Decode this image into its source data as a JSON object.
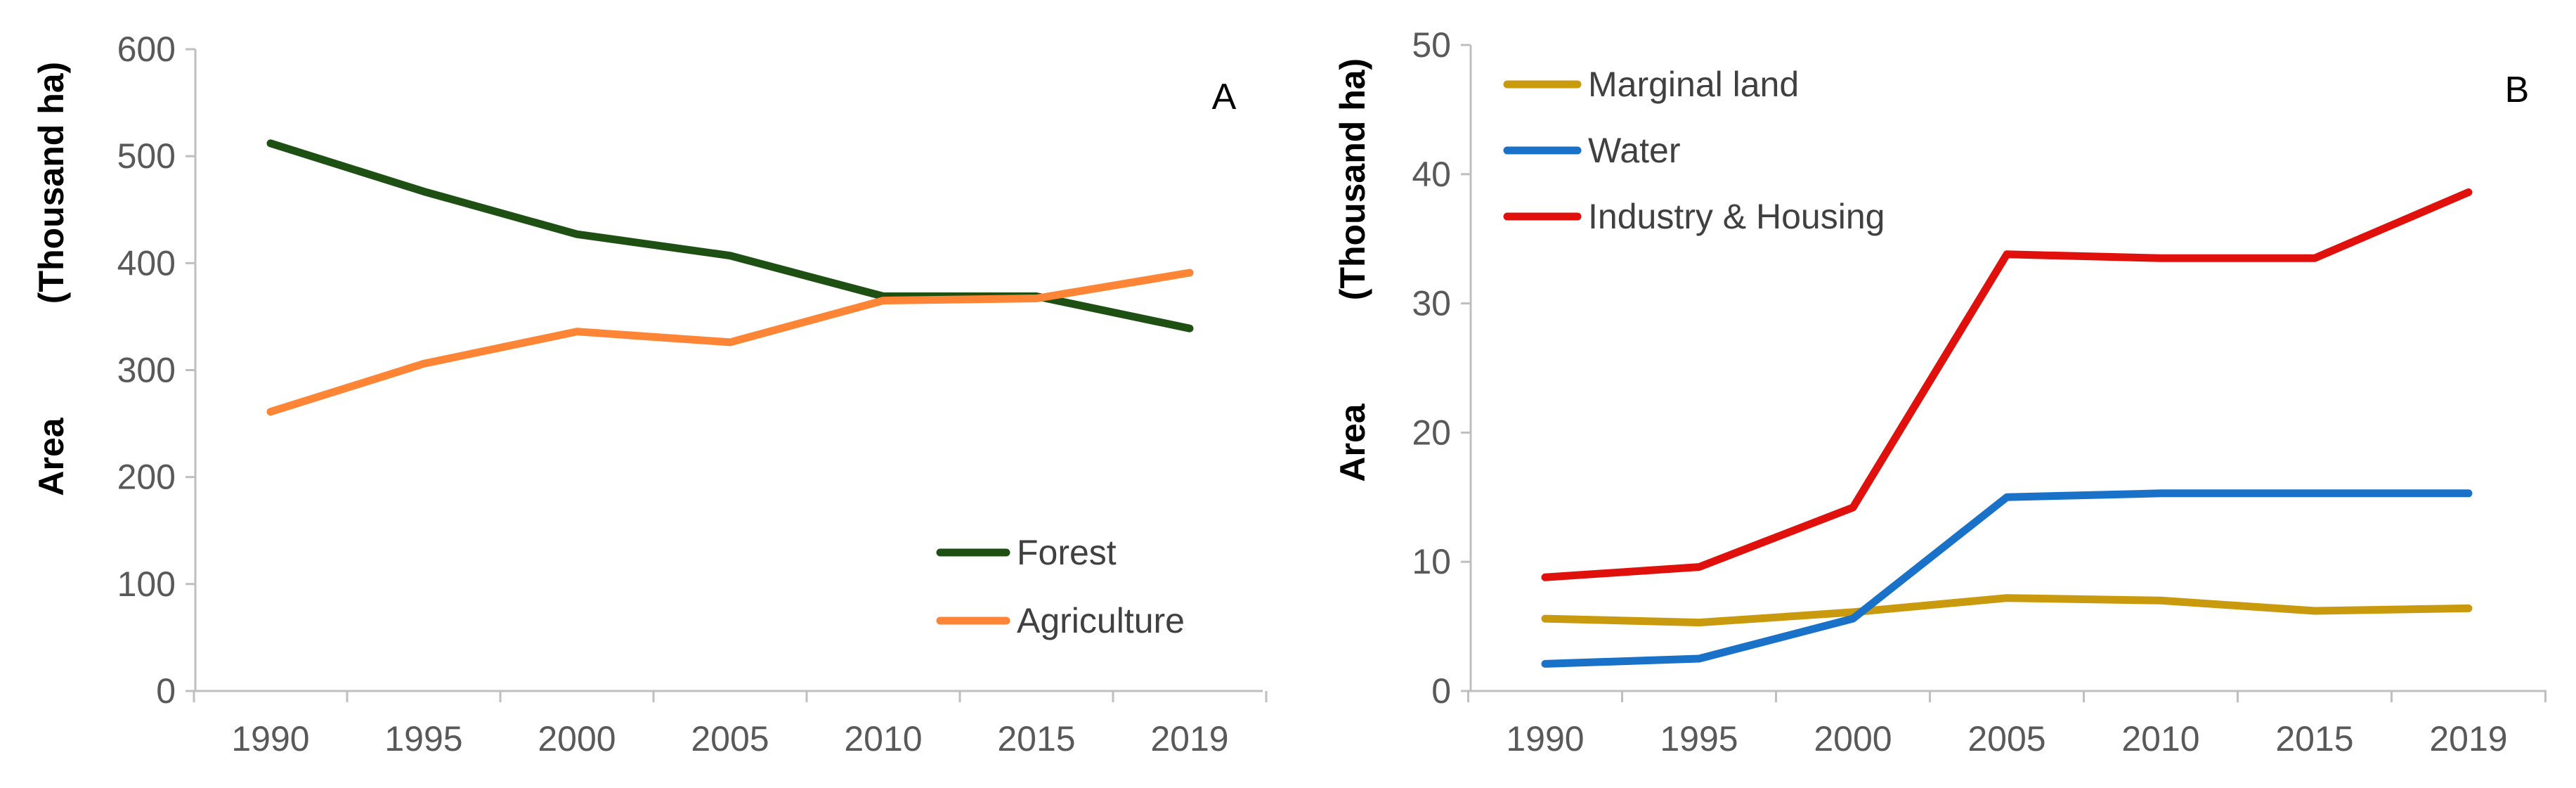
{
  "chart_data": [
    {
      "type": "line",
      "panel_label": "A",
      "categories": [
        "1990",
        "1995",
        "2000",
        "2005",
        "2010",
        "2015",
        "2019"
      ],
      "ylabel_top": "(Thousand ha)",
      "ylabel_bottom": "Area",
      "ylim": [
        0,
        600
      ],
      "yticks": [
        "0",
        "100",
        "200",
        "300",
        "400",
        "500",
        "600"
      ],
      "ytick_values": [
        0,
        100,
        200,
        300,
        400,
        500,
        600
      ],
      "legend_position": "bottom-right",
      "series": [
        {
          "name": "Forest",
          "color": "#1e5014",
          "values": [
            512,
            467,
            427,
            407,
            369,
            369,
            339
          ]
        },
        {
          "name": "Agriculture",
          "color": "#fd8535",
          "values": [
            261,
            306,
            336,
            326,
            365,
            367,
            391
          ]
        }
      ]
    },
    {
      "type": "line",
      "panel_label": "B",
      "categories": [
        "1990",
        "1995",
        "2000",
        "2005",
        "2010",
        "2015",
        "2019"
      ],
      "ylabel_top": "(Thousand ha)",
      "ylabel_bottom": "Area",
      "ylim": [
        0,
        50
      ],
      "yticks": [
        "0",
        "10",
        "20",
        "30",
        "40",
        "50"
      ],
      "ytick_values": [
        0,
        10,
        20,
        30,
        40,
        50
      ],
      "legend_position": "top-left",
      "series": [
        {
          "name": "Marginal land",
          "color": "#c99a0d",
          "values": [
            5.6,
            5.3,
            6.1,
            7.2,
            7.0,
            6.2,
            6.4
          ]
        },
        {
          "name": "Water",
          "color": "#1a72c8",
          "values": [
            2.1,
            2.5,
            5.6,
            15.0,
            15.3,
            15.3,
            15.3
          ]
        },
        {
          "name": "Industry & Housing",
          "color": "#e0100c",
          "values": [
            8.8,
            9.6,
            14.2,
            33.8,
            33.5,
            33.5,
            38.6
          ]
        }
      ]
    }
  ]
}
